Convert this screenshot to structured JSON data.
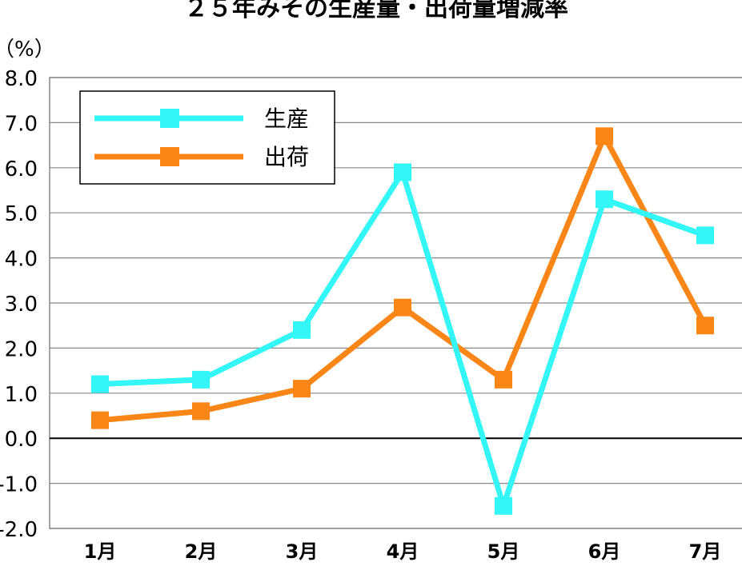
{
  "chart_data": {
    "type": "line",
    "title": "２５年みその生産量・出荷量増減率",
    "ylabel": "（%）",
    "xlabel": "",
    "categories": [
      "1月",
      "2月",
      "3月",
      "4月",
      "5月",
      "6月",
      "7月"
    ],
    "ylim": [
      -2.0,
      8.0
    ],
    "yticks": [
      8.0,
      7.0,
      6.0,
      5.0,
      4.0,
      3.0,
      2.0,
      1.0,
      0.0,
      -1.0,
      -2.0
    ],
    "ytick_labels": [
      "8.0",
      "7.0",
      "6.0",
      "5.0",
      "4.0",
      "3.0",
      "2.0",
      "1.0",
      "0.0",
      "-1.0",
      "-2.0"
    ],
    "grid": true,
    "legend_position": "top-left",
    "series": [
      {
        "name": "生産",
        "color": "#33f6f6",
        "values": [
          1.2,
          1.3,
          2.4,
          5.9,
          -1.5,
          5.3,
          4.5
        ]
      },
      {
        "name": "出荷",
        "color": "#f98616",
        "values": [
          0.4,
          0.6,
          1.1,
          2.9,
          1.3,
          6.7,
          2.5
        ]
      }
    ]
  }
}
